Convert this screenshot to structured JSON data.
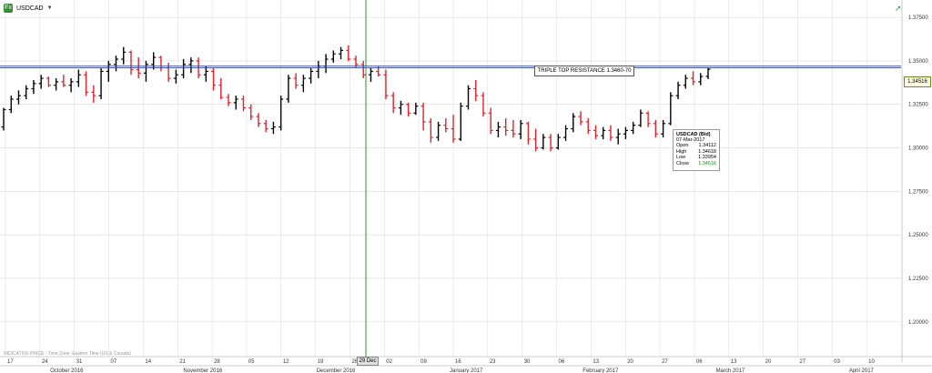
{
  "header": {
    "logo_text": "Fx",
    "symbol": "USDCAD",
    "caret": "▼"
  },
  "annotation": "TRIPLE TOP RESISTANCE 1.3460-70",
  "price_tag": "1.34516",
  "disclaimer": "INDICATIVE PRICE - Time Zone: Eastern Time (US & Canada)",
  "date_marker": "29 Dec",
  "tooltip": {
    "title": "USDCAD (Bid)",
    "date": "07-Mar-2017",
    "open_label": "Open",
    "open": "1.34112",
    "high_label": "High",
    "high": "1.34618",
    "low_label": "Low",
    "low": "1.33954",
    "close_label": "Close",
    "close": "1.34516"
  },
  "colors": {
    "up": "#000000",
    "down": "#e8202a",
    "resistance": "#3344aa",
    "cursor": "#2a9a2a",
    "grid": "#d8d8d8"
  },
  "chart_data": {
    "type": "ohlc",
    "title": "USDCAD",
    "ylim": [
      1.18,
      1.385
    ],
    "y_ticks": [
      "1.37500",
      "1.35000",
      "1.32500",
      "1.30000",
      "1.27500",
      "1.25000",
      "1.22500",
      "1.20000"
    ],
    "y_tick_values": [
      1.375,
      1.35,
      1.325,
      1.3,
      1.275,
      1.25,
      1.225,
      1.2
    ],
    "x_week_labels": [
      "17",
      "24",
      "31",
      "07",
      "14",
      "21",
      "28",
      "05",
      "12",
      "19",
      "26",
      "02",
      "09",
      "16",
      "23",
      "30",
      "06",
      "13",
      "20",
      "27",
      "06",
      "13",
      "20",
      "27",
      "03",
      "10"
    ],
    "months": [
      "October 2016",
      "November 2016",
      "December 2016",
      "January 2017",
      "February 2017",
      "March 2017",
      "April 2017"
    ],
    "resistance_levels": [
      1.346,
      1.347
    ],
    "bars": [
      [
        1.312,
        1.323,
        1.31,
        1.322
      ],
      [
        1.322,
        1.33,
        1.32,
        1.328
      ],
      [
        1.328,
        1.333,
        1.325,
        1.33
      ],
      [
        1.33,
        1.336,
        1.328,
        1.334
      ],
      [
        1.334,
        1.339,
        1.331,
        1.337
      ],
      [
        1.337,
        1.342,
        1.334,
        1.34
      ],
      [
        1.34,
        1.341,
        1.335,
        1.336
      ],
      [
        1.336,
        1.34,
        1.333,
        1.338
      ],
      [
        1.338,
        1.342,
        1.335,
        1.336
      ],
      [
        1.336,
        1.34,
        1.332,
        1.338
      ],
      [
        1.338,
        1.345,
        1.335,
        1.342
      ],
      [
        1.342,
        1.344,
        1.33,
        1.332
      ],
      [
        1.332,
        1.336,
        1.326,
        1.33
      ],
      [
        1.33,
        1.346,
        1.328,
        1.344
      ],
      [
        1.344,
        1.35,
        1.338,
        1.348
      ],
      [
        1.348,
        1.353,
        1.344,
        1.351
      ],
      [
        1.351,
        1.358,
        1.348,
        1.355
      ],
      [
        1.355,
        1.356,
        1.342,
        1.345
      ],
      [
        1.345,
        1.352,
        1.34,
        1.343
      ],
      [
        1.343,
        1.35,
        1.338,
        1.348
      ],
      [
        1.348,
        1.355,
        1.345,
        1.352
      ],
      [
        1.352,
        1.353,
        1.344,
        1.346
      ],
      [
        1.346,
        1.349,
        1.338,
        1.34
      ],
      [
        1.34,
        1.345,
        1.337,
        1.342
      ],
      [
        1.342,
        1.351,
        1.34,
        1.348
      ],
      [
        1.348,
        1.352,
        1.343,
        1.35
      ],
      [
        1.35,
        1.352,
        1.34,
        1.342
      ],
      [
        1.342,
        1.347,
        1.338,
        1.344
      ],
      [
        1.344,
        1.346,
        1.333,
        1.336
      ],
      [
        1.336,
        1.34,
        1.328,
        1.329
      ],
      [
        1.329,
        1.331,
        1.324,
        1.326
      ],
      [
        1.326,
        1.33,
        1.322,
        1.328
      ],
      [
        1.328,
        1.33,
        1.321,
        1.323
      ],
      [
        1.323,
        1.325,
        1.316,
        1.318
      ],
      [
        1.318,
        1.32,
        1.312,
        1.314
      ],
      [
        1.314,
        1.316,
        1.309,
        1.311
      ],
      [
        1.311,
        1.315,
        1.308,
        1.312
      ],
      [
        1.312,
        1.33,
        1.31,
        1.328
      ],
      [
        1.328,
        1.342,
        1.326,
        1.34
      ],
      [
        1.34,
        1.343,
        1.334,
        1.336
      ],
      [
        1.336,
        1.342,
        1.332,
        1.34
      ],
      [
        1.34,
        1.346,
        1.337,
        1.344
      ],
      [
        1.344,
        1.35,
        1.34,
        1.347
      ],
      [
        1.347,
        1.354,
        1.343,
        1.351
      ],
      [
        1.351,
        1.356,
        1.349,
        1.354
      ],
      [
        1.354,
        1.358,
        1.351,
        1.356
      ],
      [
        1.356,
        1.359,
        1.35,
        1.351
      ],
      [
        1.351,
        1.353,
        1.346,
        1.348
      ],
      [
        1.348,
        1.35,
        1.34,
        1.342
      ],
      [
        1.342,
        1.346,
        1.338,
        1.344
      ],
      [
        1.344,
        1.347,
        1.341,
        1.342
      ],
      [
        1.342,
        1.345,
        1.328,
        1.33
      ],
      [
        1.33,
        1.332,
        1.32,
        1.323
      ],
      [
        1.323,
        1.327,
        1.319,
        1.325
      ],
      [
        1.325,
        1.326,
        1.318,
        1.32
      ],
      [
        1.32,
        1.326,
        1.319,
        1.324
      ],
      [
        1.324,
        1.326,
        1.31,
        1.315
      ],
      [
        1.315,
        1.317,
        1.303,
        1.306
      ],
      [
        1.306,
        1.315,
        1.304,
        1.313
      ],
      [
        1.313,
        1.317,
        1.309,
        1.311
      ],
      [
        1.311,
        1.319,
        1.303,
        1.305
      ],
      [
        1.305,
        1.326,
        1.304,
        1.324
      ],
      [
        1.324,
        1.336,
        1.322,
        1.334
      ],
      [
        1.334,
        1.339,
        1.327,
        1.33
      ],
      [
        1.33,
        1.332,
        1.318,
        1.32
      ],
      [
        1.32,
        1.323,
        1.308,
        1.31
      ],
      [
        1.31,
        1.315,
        1.306,
        1.312
      ],
      [
        1.312,
        1.317,
        1.307,
        1.31
      ],
      [
        1.31,
        1.316,
        1.306,
        1.308
      ],
      [
        1.308,
        1.316,
        1.305,
        1.314
      ],
      [
        1.314,
        1.315,
        1.302,
        1.305
      ],
      [
        1.305,
        1.311,
        1.298,
        1.3
      ],
      [
        1.3,
        1.308,
        1.299,
        1.306
      ],
      [
        1.306,
        1.308,
        1.298,
        1.3
      ],
      [
        1.3,
        1.308,
        1.299,
        1.306
      ],
      [
        1.306,
        1.313,
        1.304,
        1.311
      ],
      [
        1.311,
        1.32,
        1.309,
        1.318
      ],
      [
        1.318,
        1.321,
        1.313,
        1.315
      ],
      [
        1.315,
        1.317,
        1.308,
        1.31
      ],
      [
        1.31,
        1.313,
        1.305,
        1.307
      ],
      [
        1.307,
        1.312,
        1.305,
        1.31
      ],
      [
        1.31,
        1.313,
        1.304,
        1.306
      ],
      [
        1.306,
        1.311,
        1.302,
        1.308
      ],
      [
        1.308,
        1.312,
        1.305,
        1.31
      ],
      [
        1.31,
        1.315,
        1.308,
        1.313
      ],
      [
        1.313,
        1.322,
        1.312,
        1.32
      ],
      [
        1.32,
        1.321,
        1.312,
        1.314
      ],
      [
        1.314,
        1.316,
        1.306,
        1.308
      ],
      [
        1.308,
        1.316,
        1.306,
        1.314
      ],
      [
        1.314,
        1.332,
        1.313,
        1.33
      ],
      [
        1.33,
        1.338,
        1.328,
        1.336
      ],
      [
        1.336,
        1.342,
        1.334,
        1.34
      ],
      [
        1.34,
        1.344,
        1.336,
        1.338
      ],
      [
        1.338,
        1.343,
        1.336,
        1.341
      ],
      [
        1.3411,
        1.3462,
        1.3395,
        1.3452
      ]
    ]
  }
}
